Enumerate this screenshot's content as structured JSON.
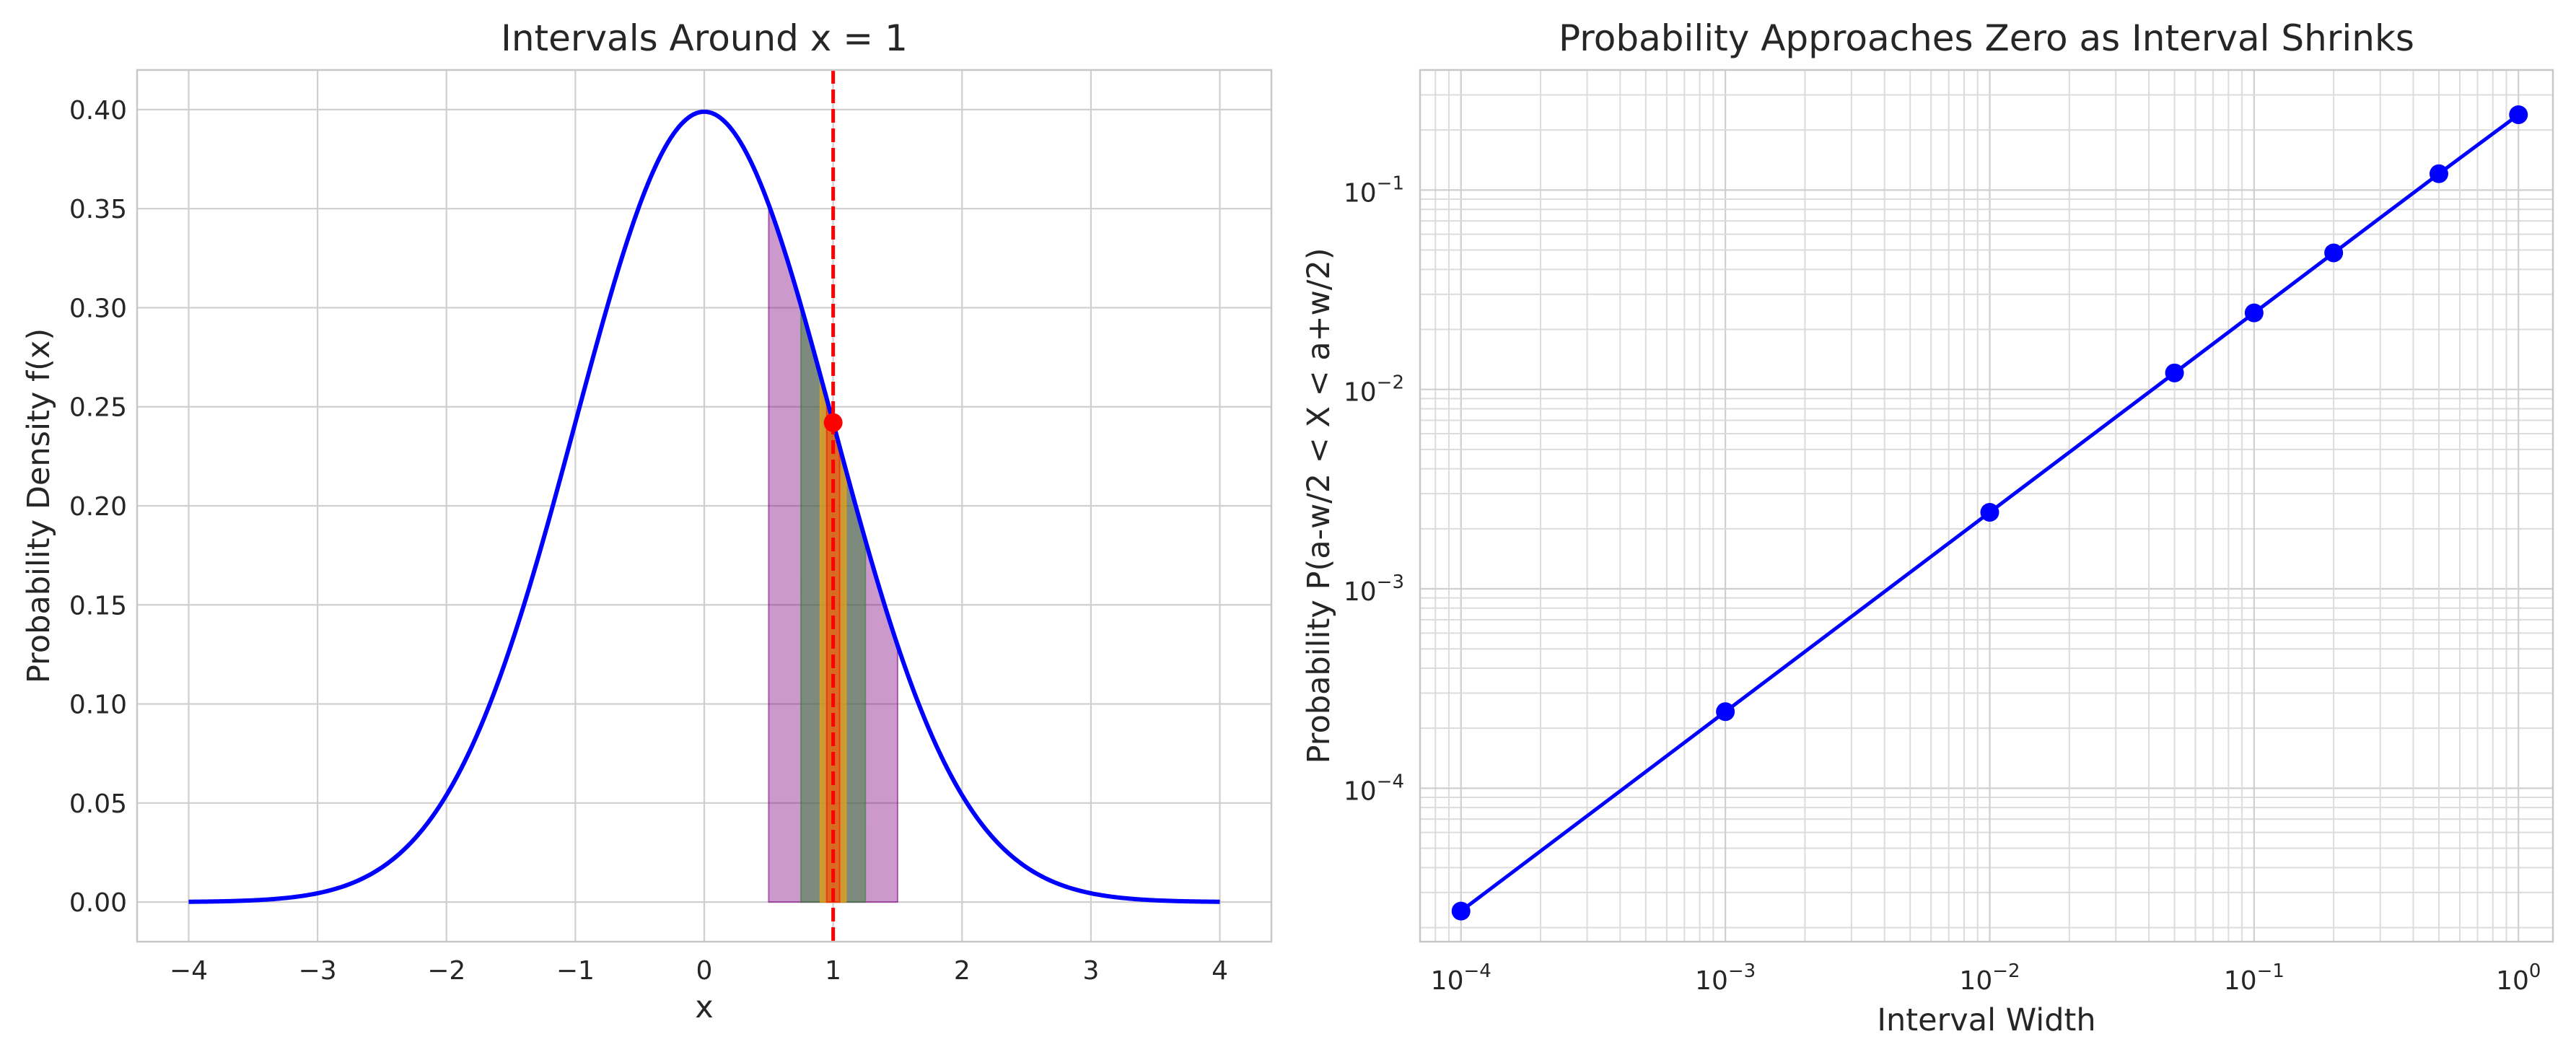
{
  "chart_data": [
    {
      "type": "area",
      "title": "Intervals Around x = 1",
      "xlabel": "x",
      "ylabel": "Probability Density f(x)",
      "xlim": [
        -4.4,
        4.4
      ],
      "ylim": [
        -0.02,
        0.42
      ],
      "xticks": [
        -4,
        -3,
        -2,
        -1,
        0,
        1,
        2,
        3,
        4
      ],
      "xtick_labels": [
        "−4",
        "−3",
        "−2",
        "−1",
        "0",
        "1",
        "2",
        "3",
        "4"
      ],
      "yticks": [
        0,
        0.05,
        0.1,
        0.15,
        0.2,
        0.25,
        0.3,
        0.35,
        0.4
      ],
      "ytick_labels": [
        "0.00",
        "0.05",
        "0.10",
        "0.15",
        "0.20",
        "0.25",
        "0.30",
        "0.35",
        "0.40"
      ],
      "grid": true,
      "curve": {
        "function": "standard normal pdf",
        "x_range": [
          -4,
          4
        ],
        "color": "#0000ff"
      },
      "intervals": [
        {
          "x_range": [
            0.5,
            1.5
          ],
          "color": "#800080",
          "alpha": 0.4
        },
        {
          "x_range": [
            0.75,
            1.25
          ],
          "color": "#2e7d32",
          "alpha": 0.5
        },
        {
          "x_range": [
            0.9,
            1.1
          ],
          "color": "#ffa500",
          "alpha": 0.6
        },
        {
          "x_range": [
            0.95,
            1.05
          ],
          "color": "#ff0000",
          "alpha": 0.3
        }
      ],
      "vline": {
        "x": 1,
        "color": "#ff0000",
        "style": "dashed"
      },
      "point": {
        "x": 1,
        "y": 0.242,
        "color": "#ff0000"
      }
    },
    {
      "type": "line",
      "title": "Probability Approaches Zero as Interval Shrinks",
      "xlabel": "Interval Width",
      "ylabel": "Probability P(a-w/2 < X < a+w/2)",
      "xscale": "log",
      "yscale": "log",
      "xlim": [
        7e-05,
        1.35
      ],
      "ylim": [
        1.7e-05,
        0.4
      ],
      "xticks": [
        0.0001,
        0.001,
        0.01,
        0.1,
        1
      ],
      "xtick_labels": [
        {
          "base": "10",
          "exp": "−4"
        },
        {
          "base": "10",
          "exp": "−3"
        },
        {
          "base": "10",
          "exp": "−2"
        },
        {
          "base": "10",
          "exp": "−1"
        },
        {
          "base": "10",
          "exp": "0"
        }
      ],
      "yticks": [
        0.0001,
        0.001,
        0.01,
        0.1
      ],
      "ytick_labels": [
        {
          "base": "10",
          "exp": "−4"
        },
        {
          "base": "10",
          "exp": "−3"
        },
        {
          "base": "10",
          "exp": "−2"
        },
        {
          "base": "10",
          "exp": "−1"
        }
      ],
      "grid": true,
      "color": "#0000ff",
      "x": [
        0.0001,
        0.001,
        0.01,
        0.05,
        0.1,
        0.2,
        0.5,
        1
      ],
      "y": [
        2.42e-05,
        0.000242,
        0.00242,
        0.0121,
        0.0242,
        0.0484,
        0.1207,
        0.2387
      ]
    }
  ]
}
